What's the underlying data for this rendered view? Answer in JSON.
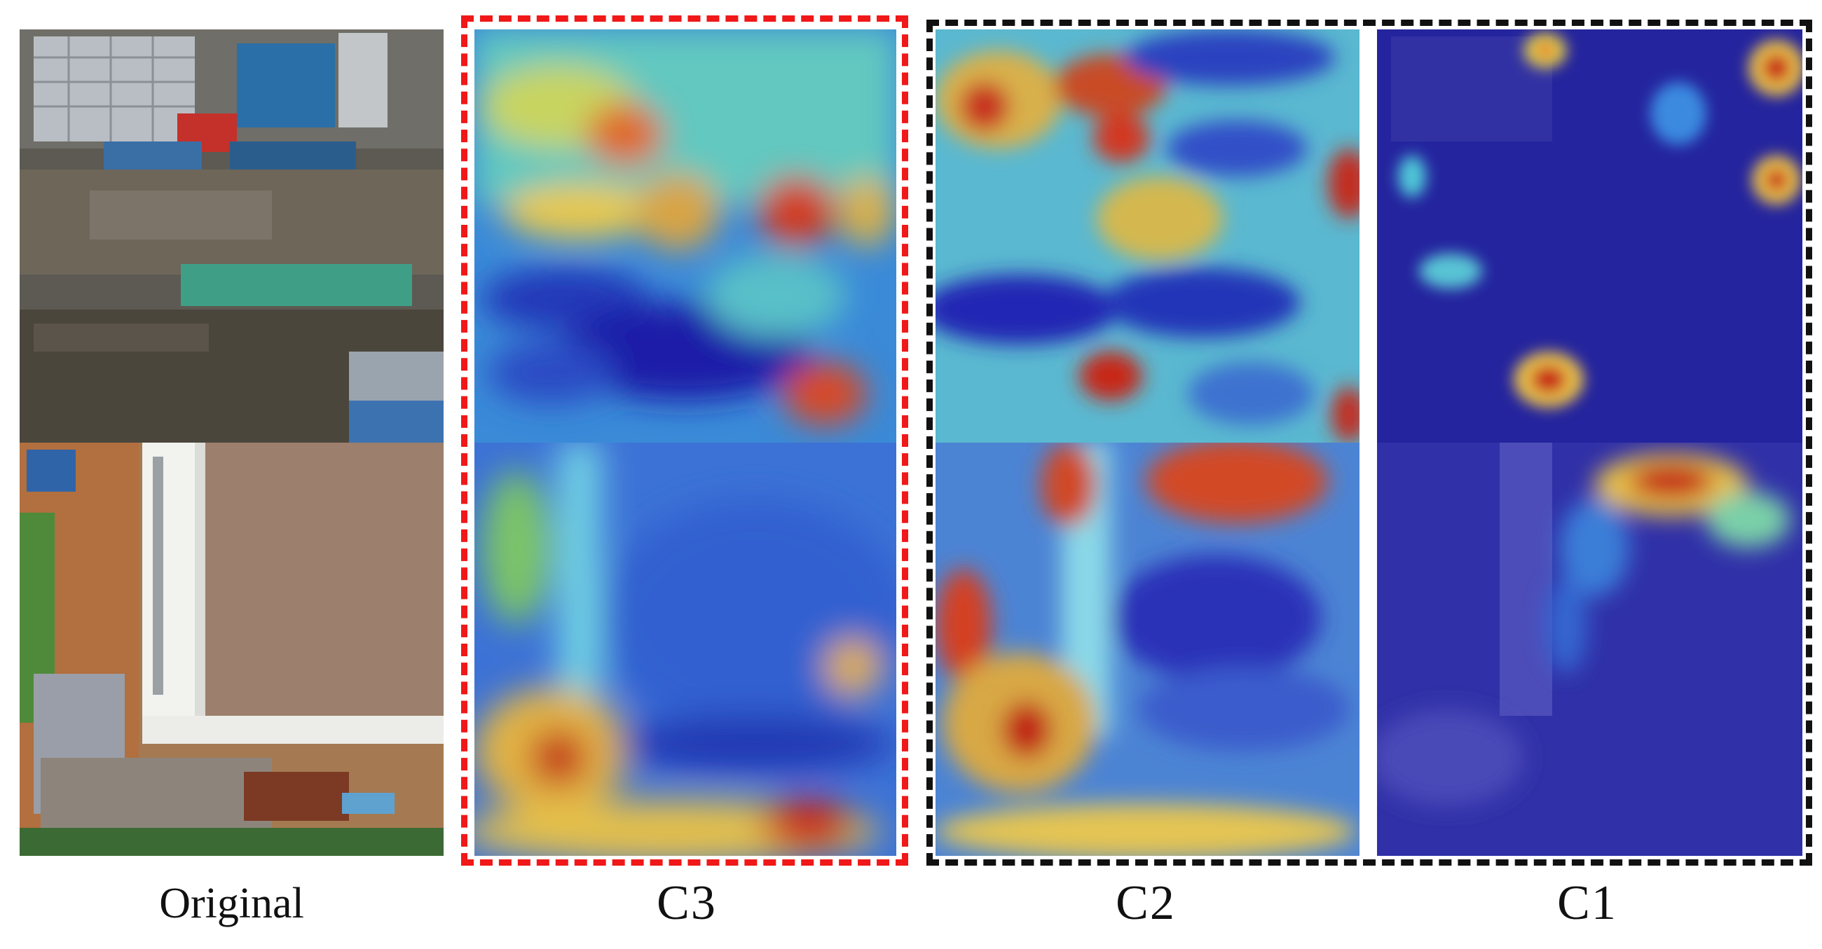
{
  "figure": {
    "captions": {
      "original": "Original",
      "c3": "C3",
      "c2": "C2",
      "c1": "C1"
    },
    "frames": {
      "c3_color": "#f01818",
      "c1_c2_color": "#111111"
    },
    "heatmap_palette": [
      "#1a1ab8",
      "#2a6ee0",
      "#3cc0c8",
      "#e8d84a",
      "#e05a28",
      "#c01818"
    ]
  }
}
